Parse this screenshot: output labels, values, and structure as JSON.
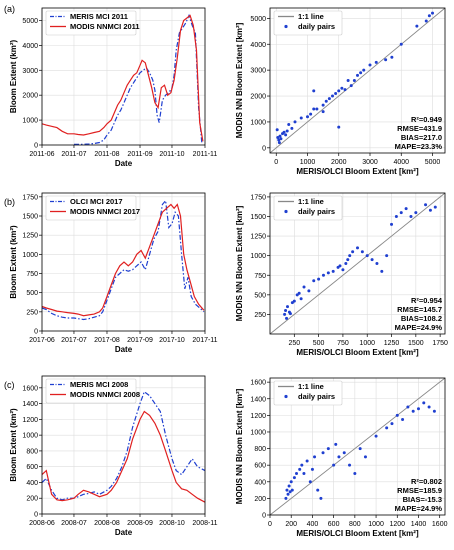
{
  "chart_data": [
    {
      "panel": "(a)",
      "type": "line",
      "xlabel": "Date",
      "ylabel": "Bloom Extent (km²)",
      "ylim": [
        0,
        5500
      ],
      "yticks": [
        0,
        1000,
        2000,
        3000,
        4000,
        5000
      ],
      "xlim": [
        "2011-06-01",
        "2011-11-01"
      ],
      "xticks": [
        "2011-06",
        "2011-07",
        "2011-08",
        "2011-09",
        "2011-10",
        "2011-11"
      ],
      "legend_position": "top-left",
      "series": [
        {
          "name": "MERIS MCI 2011",
          "color": "#1f3fd0",
          "style": "dashdot",
          "x": [
            "2011-07-01",
            "2011-07-05",
            "2011-07-10",
            "2011-07-15",
            "2011-07-20",
            "2011-07-25",
            "2011-07-29",
            "2011-08-01",
            "2011-08-05",
            "2011-08-08",
            "2011-08-11",
            "2011-08-14",
            "2011-08-17",
            "2011-08-20",
            "2011-08-23",
            "2011-08-26",
            "2011-08-29",
            "2011-09-01",
            "2011-09-04",
            "2011-09-07",
            "2011-09-10",
            "2011-09-13",
            "2011-09-15",
            "2011-09-17",
            "2011-09-19",
            "2011-09-22",
            "2011-09-25",
            "2011-09-28",
            "2011-10-01",
            "2011-10-03",
            "2011-10-05",
            "2011-10-08",
            "2011-10-11",
            "2011-10-14",
            "2011-10-17",
            "2011-10-20",
            "2011-10-23",
            "2011-10-26",
            "2011-10-29"
          ],
          "y": [
            30,
            30,
            30,
            40,
            60,
            100,
            200,
            400,
            600,
            900,
            1200,
            1400,
            1700,
            2000,
            2300,
            2500,
            2700,
            2900,
            3000,
            3100,
            2900,
            2600,
            2200,
            1200,
            900,
            1800,
            2000,
            2100,
            2300,
            2800,
            3800,
            4500,
            4700,
            4900,
            5200,
            4800,
            4500,
            1500,
            100
          ]
        },
        {
          "name": "MODIS NNMCI 2011",
          "color": "#e02020",
          "style": "solid",
          "x": [
            "2011-06-01",
            "2011-06-05",
            "2011-06-10",
            "2011-06-15",
            "2011-06-20",
            "2011-06-25",
            "2011-07-01",
            "2011-07-05",
            "2011-07-10",
            "2011-07-15",
            "2011-07-20",
            "2011-07-25",
            "2011-07-29",
            "2011-08-01",
            "2011-08-05",
            "2011-08-08",
            "2011-08-11",
            "2011-08-14",
            "2011-08-17",
            "2011-08-20",
            "2011-08-23",
            "2011-08-26",
            "2011-08-29",
            "2011-09-01",
            "2011-09-03",
            "2011-09-06",
            "2011-09-09",
            "2011-09-12",
            "2011-09-15",
            "2011-09-18",
            "2011-09-21",
            "2011-09-24",
            "2011-09-27",
            "2011-09-30",
            "2011-10-03",
            "2011-10-06",
            "2011-10-09",
            "2011-10-12",
            "2011-10-15",
            "2011-10-18",
            "2011-10-21",
            "2011-10-24",
            "2011-10-27",
            "2011-10-30"
          ],
          "y": [
            850,
            800,
            750,
            700,
            550,
            450,
            450,
            420,
            400,
            450,
            500,
            550,
            700,
            850,
            1000,
            1300,
            1600,
            1800,
            2100,
            2400,
            2600,
            2800,
            2900,
            3200,
            3400,
            3300,
            2800,
            2300,
            1700,
            1500,
            2300,
            2400,
            2000,
            2100,
            2600,
            3500,
            4600,
            5000,
            5100,
            5200,
            4800,
            3800,
            900,
            150
          ]
        }
      ]
    },
    {
      "panel": "",
      "type": "scatter",
      "xlabel": "MERIS/OLCI Bloom Extent [km²]",
      "ylabel": "MODIS NN Bloom Extent [km²]",
      "xlim": [
        -200,
        5400
      ],
      "ylim": [
        -200,
        5400
      ],
      "xticks": [
        0,
        1000,
        2000,
        3000,
        4000,
        5000
      ],
      "yticks": [
        0,
        1000,
        2000,
        3000,
        4000,
        5000
      ],
      "legend_position": "top-left",
      "series": [
        {
          "name": "1:1 line",
          "color": "#888888",
          "kind": "line"
        },
        {
          "name": "daily pairs",
          "color": "#1f3fd0",
          "kind": "points",
          "x": [
            30,
            50,
            80,
            100,
            120,
            150,
            200,
            250,
            300,
            350,
            400,
            500,
            600,
            800,
            1000,
            1100,
            1200,
            1300,
            1500,
            1600,
            1700,
            1800,
            1900,
            2000,
            2100,
            2200,
            2300,
            2400,
            2500,
            2600,
            2700,
            2800,
            3000,
            3200,
            3500,
            3700,
            4000,
            4500,
            4800,
            4900,
            5000,
            2000,
            1200,
            1500
          ],
          "y": [
            700,
            400,
            300,
            200,
            450,
            350,
            550,
            600,
            500,
            650,
            900,
            750,
            1000,
            1150,
            1200,
            1300,
            1500,
            1500,
            1650,
            1800,
            1900,
            2000,
            2100,
            2200,
            2300,
            2250,
            2600,
            2400,
            2600,
            2800,
            2900,
            3000,
            3200,
            3300,
            3400,
            3500,
            4000,
            4700,
            4900,
            5100,
            5200,
            800,
            2200,
            1400
          ]
        }
      ],
      "stats": [
        "R²=0.949",
        "RMSE=431.9",
        "BIAS=217.0",
        "MAPE=23.3%"
      ]
    },
    {
      "panel": "(b)",
      "type": "line",
      "xlabel": "Date",
      "ylabel": "Bloom Extent (km²)",
      "ylim": [
        0,
        1800
      ],
      "yticks": [
        0,
        250,
        500,
        750,
        1000,
        1250,
        1500,
        1750
      ],
      "xlim": [
        "2017-06-01",
        "2017-11-01"
      ],
      "xticks": [
        "2017-06",
        "2017-07",
        "2017-08",
        "2017-09",
        "2017-10",
        "2017-11"
      ],
      "legend_position": "top-left",
      "series": [
        {
          "name": "OLCI MCI 2017",
          "color": "#1f3fd0",
          "style": "dashdot",
          "x": [
            "2017-06-01",
            "2017-06-05",
            "2017-06-10",
            "2017-06-15",
            "2017-06-20",
            "2017-06-25",
            "2017-07-01",
            "2017-07-05",
            "2017-07-10",
            "2017-07-15",
            "2017-07-20",
            "2017-07-25",
            "2017-07-28",
            "2017-08-01",
            "2017-08-05",
            "2017-08-09",
            "2017-08-13",
            "2017-08-17",
            "2017-08-21",
            "2017-08-25",
            "2017-08-29",
            "2017-09-02",
            "2017-09-06",
            "2017-09-10",
            "2017-09-14",
            "2017-09-18",
            "2017-09-22",
            "2017-09-25",
            "2017-09-28",
            "2017-10-01",
            "2017-10-04",
            "2017-10-07",
            "2017-10-10",
            "2017-10-13",
            "2017-10-16",
            "2017-10-19",
            "2017-10-23",
            "2017-10-27",
            "2017-10-31"
          ],
          "y": [
            300,
            280,
            230,
            200,
            180,
            170,
            170,
            160,
            150,
            160,
            180,
            200,
            250,
            400,
            550,
            700,
            750,
            800,
            780,
            800,
            850,
            900,
            800,
            1000,
            1200,
            1300,
            1650,
            1700,
            1350,
            1400,
            1550,
            1500,
            1000,
            550,
            700,
            450,
            350,
            300,
            250
          ]
        },
        {
          "name": "MODIS NNMCI 2017",
          "color": "#e02020",
          "style": "solid",
          "x": [
            "2017-06-01",
            "2017-06-05",
            "2017-06-10",
            "2017-06-15",
            "2017-06-20",
            "2017-06-25",
            "2017-07-01",
            "2017-07-05",
            "2017-07-10",
            "2017-07-15",
            "2017-07-20",
            "2017-07-25",
            "2017-07-28",
            "2017-08-01",
            "2017-08-05",
            "2017-08-09",
            "2017-08-13",
            "2017-08-17",
            "2017-08-21",
            "2017-08-25",
            "2017-08-29",
            "2017-09-02",
            "2017-09-06",
            "2017-09-10",
            "2017-09-14",
            "2017-09-18",
            "2017-09-22",
            "2017-09-26",
            "2017-09-30",
            "2017-10-03",
            "2017-10-06",
            "2017-10-09",
            "2017-10-12",
            "2017-10-15",
            "2017-10-18",
            "2017-10-22",
            "2017-10-26",
            "2017-10-31"
          ],
          "y": [
            320,
            300,
            280,
            260,
            250,
            240,
            230,
            220,
            200,
            210,
            220,
            250,
            300,
            450,
            600,
            750,
            850,
            900,
            850,
            900,
            1000,
            1050,
            950,
            1100,
            1250,
            1400,
            1550,
            1600,
            1650,
            1600,
            1650,
            1500,
            1000,
            800,
            650,
            450,
            350,
            270
          ]
        }
      ]
    },
    {
      "panel": "",
      "type": "scatter",
      "xlabel": "MERIS/OLCI Bloom Extent [km²]",
      "ylabel": "MODIS NN Bloom Extent [km²]",
      "xlim": [
        0,
        1800
      ],
      "ylim": [
        0,
        1800
      ],
      "xticks": [
        250,
        500,
        750,
        1000,
        1250,
        1500,
        1750
      ],
      "yticks": [
        250,
        500,
        750,
        1000,
        1250,
        1500,
        1750
      ],
      "legend_position": "top-left",
      "series": [
        {
          "name": "1:1 line",
          "color": "#888888",
          "kind": "line"
        },
        {
          "name": "daily pairs",
          "color": "#1f3fd0",
          "kind": "points",
          "x": [
            150,
            160,
            170,
            180,
            200,
            210,
            230,
            250,
            280,
            300,
            320,
            350,
            400,
            450,
            500,
            550,
            600,
            650,
            700,
            720,
            750,
            780,
            800,
            820,
            850,
            900,
            950,
            1000,
            1050,
            1100,
            1150,
            1200,
            1250,
            1300,
            1350,
            1400,
            1450,
            1500,
            1600,
            1650,
            1700
          ],
          "y": [
            250,
            300,
            200,
            350,
            280,
            260,
            400,
            420,
            500,
            520,
            450,
            600,
            550,
            680,
            700,
            750,
            780,
            800,
            850,
            870,
            820,
            900,
            950,
            1000,
            1050,
            1100,
            1050,
            1000,
            950,
            900,
            800,
            1000,
            1400,
            1500,
            1550,
            1600,
            1500,
            1550,
            1650,
            1580,
            1620
          ]
        }
      ],
      "stats": [
        "R²=0.954",
        "RMSE=145.7",
        "BIAS=108.2",
        "MAPE=24.9%"
      ]
    },
    {
      "panel": "(c)",
      "type": "line",
      "xlabel": "Date",
      "ylabel": "Bloom Extent (km²)",
      "ylim": [
        0,
        1750
      ],
      "yticks": [
        0,
        200,
        400,
        600,
        800,
        1000,
        1200,
        1400,
        1600
      ],
      "xlim": [
        "2008-06-01",
        "2008-11-01"
      ],
      "xticks": [
        "2008-06",
        "2008-07",
        "2008-08",
        "2008-09",
        "2008-10",
        "2008-11"
      ],
      "legend_position": "top-left",
      "series": [
        {
          "name": "MERIS MCI 2008",
          "color": "#1f3fd0",
          "style": "dashdot",
          "x": [
            "2008-06-01",
            "2008-06-05",
            "2008-06-10",
            "2008-06-15",
            "2008-06-20",
            "2008-06-25",
            "2008-07-01",
            "2008-07-05",
            "2008-07-10",
            "2008-07-15",
            "2008-07-20",
            "2008-07-25",
            "2008-08-01",
            "2008-08-05",
            "2008-08-10",
            "2008-08-15",
            "2008-08-20",
            "2008-08-25",
            "2008-09-01",
            "2008-09-05",
            "2008-09-10",
            "2008-09-15",
            "2008-09-20",
            "2008-09-25",
            "2008-10-01",
            "2008-10-05",
            "2008-10-10",
            "2008-10-15",
            "2008-10-20",
            "2008-10-25",
            "2008-11-01"
          ],
          "y": [
            400,
            450,
            300,
            200,
            180,
            200,
            200,
            220,
            250,
            260,
            280,
            250,
            300,
            350,
            450,
            600,
            800,
            1100,
            1400,
            1550,
            1500,
            1400,
            1300,
            1000,
            700,
            550,
            500,
            600,
            700,
            600,
            550
          ]
        },
        {
          "name": "MODIS NNMCI 2008",
          "color": "#e02020",
          "style": "solid",
          "x": [
            "2008-06-01",
            "2008-06-05",
            "2008-06-10",
            "2008-06-15",
            "2008-06-20",
            "2008-06-25",
            "2008-07-01",
            "2008-07-05",
            "2008-07-10",
            "2008-07-15",
            "2008-07-20",
            "2008-07-25",
            "2008-08-01",
            "2008-08-05",
            "2008-08-10",
            "2008-08-15",
            "2008-08-20",
            "2008-08-25",
            "2008-09-01",
            "2008-09-05",
            "2008-09-10",
            "2008-09-15",
            "2008-09-20",
            "2008-09-25",
            "2008-10-01",
            "2008-10-05",
            "2008-10-10",
            "2008-10-15",
            "2008-10-20",
            "2008-10-25",
            "2008-11-01"
          ],
          "y": [
            500,
            550,
            250,
            180,
            170,
            180,
            200,
            250,
            300,
            280,
            250,
            220,
            250,
            300,
            400,
            550,
            700,
            950,
            1200,
            1300,
            1250,
            1150,
            1000,
            800,
            550,
            400,
            320,
            300,
            250,
            200,
            150
          ]
        }
      ]
    },
    {
      "panel": "",
      "type": "scatter",
      "xlabel": "MERIS/OLCI Bloom Extent [km²]",
      "ylabel": "MODIS NN Bloom Extent [km²]",
      "xlim": [
        0,
        1650
      ],
      "ylim": [
        0,
        1650
      ],
      "xticks": [
        0,
        200,
        400,
        600,
        800,
        1000,
        1200,
        1400,
        1600
      ],
      "yticks": [
        0,
        200,
        400,
        600,
        800,
        1000,
        1200,
        1400,
        1600
      ],
      "legend_position": "top-left",
      "series": [
        {
          "name": "1:1 line",
          "color": "#888888",
          "kind": "line"
        },
        {
          "name": "daily pairs",
          "color": "#1f3fd0",
          "kind": "points",
          "x": [
            150,
            160,
            170,
            180,
            190,
            200,
            210,
            230,
            250,
            280,
            300,
            320,
            350,
            380,
            400,
            420,
            450,
            480,
            500,
            550,
            600,
            620,
            650,
            700,
            750,
            800,
            850,
            900,
            1000,
            1100,
            1150,
            1200,
            1250,
            1300,
            1350,
            1400,
            1450,
            1500,
            1550
          ],
          "y": [
            200,
            300,
            250,
            350,
            280,
            400,
            300,
            450,
            500,
            550,
            600,
            500,
            650,
            400,
            550,
            700,
            300,
            200,
            750,
            800,
            600,
            850,
            700,
            750,
            600,
            500,
            800,
            700,
            950,
            1050,
            1100,
            1200,
            1150,
            1300,
            1250,
            1280,
            1350,
            1300,
            1250
          ]
        }
      ],
      "stats": [
        "R²=0.802",
        "RMSE=185.9",
        "BIAS=-15.3",
        "MAPE=24.9%"
      ]
    }
  ]
}
